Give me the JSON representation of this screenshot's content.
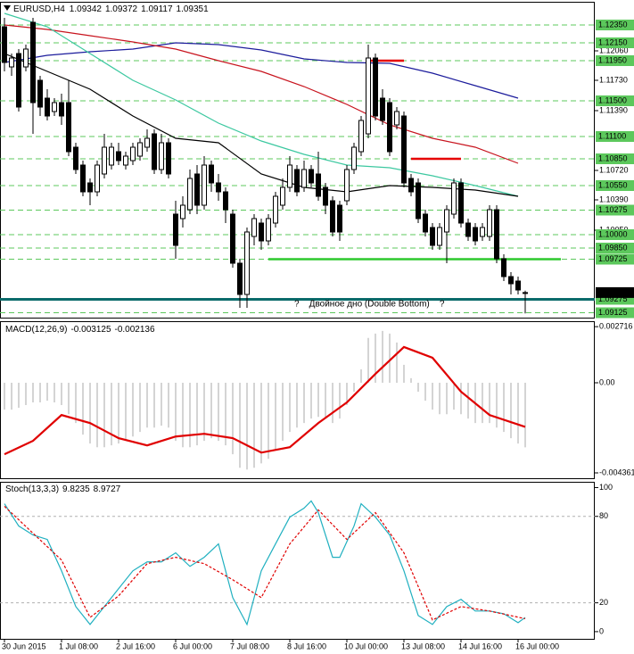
{
  "chart_data": [
    {
      "type": "candlestick",
      "title": "EURUSD,H4",
      "open": [
        1.1233,
        1.1188,
        1.1203,
        1.1188,
        1.1238,
        1.1173,
        1.1153,
        1.1138,
        1.1148,
        1.1148,
        1.1098,
        1.1078,
        1.1058,
        1.1048,
        1.1068,
        1.1078,
        1.1093,
        1.1078,
        1.1083,
        1.1088,
        1.1098,
        1.1113,
        1.1073,
        1.1103,
        1.1023,
        1.1018,
        1.1028,
        1.1068,
        1.1033,
        1.1078,
        1.1058,
        1.1048,
        1.1023,
        1.0968,
        1.0933,
        1.0998,
        1.1013,
        1.0993,
        1.1013,
        1.1033,
        1.1053,
        1.1073,
        1.1053,
        1.1073,
        1.1068,
        1.1053,
        1.1038,
        1.1033,
        1.1038,
        1.1073,
        1.1093,
        1.1113,
        1.1198,
        1.1153,
        1.1148,
        1.1123,
        1.1133,
        1.1063,
        1.1058,
        1.1023,
        1.1008,
        1.0988,
        1.1003,
        1.1023,
        1.1058,
        1.1013,
        1.1008,
        1.0998,
        1.0998,
        1.1028,
        1.0973,
        1.0953,
        1.0948,
        1.09342
      ],
      "high": [
        1.1243,
        1.1203,
        1.1208,
        1.1213,
        1.1243,
        1.1178,
        1.1163,
        1.1153,
        1.1158,
        1.1173,
        1.1103,
        1.1083,
        1.1063,
        1.1083,
        1.1113,
        1.1103,
        1.1103,
        1.1093,
        1.1103,
        1.1108,
        1.1118,
        1.1118,
        1.1113,
        1.1108,
        1.1038,
        1.1043,
        1.1073,
        1.1078,
        1.1088,
        1.1083,
        1.1068,
        1.1053,
        1.1028,
        1.0973,
        1.1008,
        1.1023,
        1.1018,
        1.1023,
        1.1048,
        1.1063,
        1.1088,
        1.1078,
        1.1083,
        1.1078,
        1.1093,
        1.1058,
        1.1043,
        1.1038,
        1.1078,
        1.1103,
        1.1133,
        1.1213,
        1.1203,
        1.1163,
        1.1153,
        1.1143,
        1.1138,
        1.1068,
        1.1063,
        1.1028,
        1.1013,
        1.1013,
        1.1033,
        1.1063,
        1.1063,
        1.1018,
        1.1013,
        1.1013,
        1.1033,
        1.1033,
        1.0978,
        1.0958,
        1.0953,
        1.09372
      ],
      "low": [
        1.1183,
        1.1178,
        1.1138,
        1.1183,
        1.1113,
        1.1133,
        1.1128,
        1.1133,
        1.1123,
        1.1088,
        1.1068,
        1.1043,
        1.1033,
        1.1043,
        1.1063,
        1.1073,
        1.1078,
        1.1073,
        1.1078,
        1.1083,
        1.1093,
        1.1068,
        1.1068,
        1.1063,
        1.0973,
        1.1008,
        1.1023,
        1.1023,
        1.1028,
        1.1048,
        1.1038,
        1.1013,
        1.0963,
        1.0918,
        1.0918,
        1.0988,
        1.0983,
        1.0988,
        1.1008,
        1.1028,
        1.1048,
        1.1043,
        1.1048,
        1.1053,
        1.1038,
        1.1023,
        1.0998,
        1.0993,
        1.1033,
        1.1068,
        1.1088,
        1.1108,
        1.1128,
        1.1123,
        1.1088,
        1.1118,
        1.1053,
        1.1043,
        1.1013,
        1.0998,
        1.0983,
        1.0983,
        1.0968,
        1.1018,
        1.1008,
        1.0993,
        1.0988,
        1.0993,
        1.0993,
        1.0968,
        1.0948,
        1.0933,
        1.0933,
        1.09117
      ],
      "close": [
        1.1193,
        1.1198,
        1.1143,
        1.1208,
        1.1148,
        1.1143,
        1.1133,
        1.1148,
        1.1133,
        1.1093,
        1.1073,
        1.1048,
        1.1048,
        1.1078,
        1.1098,
        1.1098,
        1.1083,
        1.1088,
        1.1098,
        1.1103,
        1.1108,
        1.1073,
        1.1103,
        1.1068,
        1.0988,
        1.1033,
        1.1063,
        1.1033,
        1.1078,
        1.1058,
        1.1048,
        1.1028,
        1.0968,
        1.0933,
        1.1003,
        1.1018,
        1.0993,
        1.1018,
        1.1043,
        1.1053,
        1.1078,
        1.1048,
        1.1073,
        1.1058,
        1.1043,
        1.1033,
        1.1003,
        1.1003,
        1.1073,
        1.1098,
        1.1128,
        1.1198,
        1.1133,
        1.1128,
        1.1093,
        1.1138,
        1.1058,
        1.1048,
        1.1018,
        1.1003,
        1.0988,
        1.1008,
        1.1028,
        1.1058,
        1.1013,
        1.0998,
        1.0993,
        1.1008,
        1.1028,
        1.0973,
        1.0953,
        1.0945,
        1.0938,
        1.09351
      ],
      "ylim": [
        1.0907,
        1.1261
      ],
      "yticks": [
        {
          "value": 1.1206,
          "label": "1.12060"
        },
        {
          "value": 1.1173,
          "label": "1.11730"
        },
        {
          "value": 1.1139,
          "label": "1.11390"
        },
        {
          "value": 1.1072,
          "label": "1.10720"
        },
        {
          "value": 1.1039,
          "label": "1.10390"
        },
        {
          "value": 1.1005,
          "label": "1.10050"
        }
      ],
      "levels": [
        {
          "value": 1.1235,
          "label": "1.12350"
        },
        {
          "value": 1.1215,
          "label": "1.12150"
        },
        {
          "value": 1.1195,
          "label": "1.11950"
        },
        {
          "value": 1.115,
          "label": "1.11500"
        },
        {
          "value": 1.111,
          "label": "1.11100"
        },
        {
          "value": 1.1085,
          "label": "1.10850"
        },
        {
          "value": 1.1055,
          "label": "1.10550"
        },
        {
          "value": 1.10275,
          "label": "1.10275"
        },
        {
          "value": 1.1,
          "label": "1.10000"
        },
        {
          "value": 1.0985,
          "label": "1.09850"
        },
        {
          "value": 1.09725,
          "label": "1.09725"
        },
        {
          "value": 1.09275,
          "label": "1.09275"
        },
        {
          "value": 1.09125,
          "label": "1.09125"
        }
      ],
      "level_color": "#5cc85c",
      "moving_averages": [
        {
          "color": "#1c1c9c",
          "x": [
            0,
            6,
            12,
            18,
            24,
            30,
            36,
            42,
            48,
            54,
            60,
            66,
            72
          ],
          "values": [
            1.1193,
            1.1201,
            1.1205,
            1.1208,
            1.1215,
            1.1213,
            1.1207,
            1.1197,
            1.1193,
            1.1192,
            1.1181,
            1.1167,
            1.1153
          ]
        },
        {
          "color": "#c8141e",
          "x": [
            0,
            6,
            12,
            18,
            24,
            30,
            36,
            42,
            48,
            54,
            60,
            66,
            72
          ],
          "values": [
            1.1235,
            1.123,
            1.1223,
            1.1216,
            1.1208,
            1.1195,
            1.1183,
            1.1166,
            1.1146,
            1.1123,
            1.1108,
            1.1098,
            1.108
          ]
        },
        {
          "color": "#3cc8a0",
          "x": [
            0,
            6,
            12,
            18,
            24,
            30,
            36,
            42,
            48,
            54,
            60,
            66,
            72
          ],
          "values": [
            1.1248,
            1.1233,
            1.1203,
            1.1173,
            1.1151,
            1.1125,
            1.1105,
            1.109,
            1.1078,
            1.1075,
            1.1066,
            1.1055,
            1.1043
          ]
        },
        {
          "color": "#000000",
          "x": [
            0,
            6,
            12,
            18,
            24,
            30,
            36,
            42,
            48,
            54,
            60,
            66,
            72
          ],
          "values": [
            1.1203,
            1.1183,
            1.1163,
            1.1133,
            1.1108,
            1.1103,
            1.1068,
            1.1053,
            1.1048,
            1.1055,
            1.1053,
            1.105,
            1.1043
          ]
        }
      ],
      "hline": {
        "value": 1.09275,
        "color": "#0b6b6b"
      },
      "segments": [
        {
          "color": "#e60000",
          "x": [
            51,
            56
          ],
          "value": 1.1195
        },
        {
          "color": "#e60000",
          "x": [
            57,
            64
          ],
          "value": 1.1085
        },
        {
          "color": "#2ec82e",
          "x": [
            37,
            78
          ],
          "value": 1.09725
        }
      ],
      "annotation": "?    Двойное дно (Double Bottom)    ?",
      "annotation_color": "#1e3cf0",
      "xticks": [
        {
          "value": 0,
          "label": "30 Jun 2015"
        },
        {
          "value": 8,
          "label": "1 Jul 08:00"
        },
        {
          "value": 16,
          "label": "2 Jul 16:00"
        },
        {
          "value": 24,
          "label": "6 Jul 00:00"
        },
        {
          "value": 32,
          "label": "7 Jul 08:00"
        },
        {
          "value": 40,
          "label": "8 Jul 16:00"
        },
        {
          "value": 48,
          "label": "10 Jul 00:00"
        },
        {
          "value": 56,
          "label": "13 Jul 08:00"
        },
        {
          "value": 64,
          "label": "14 Jul 16:00"
        },
        {
          "value": 72,
          "label": "16 Jul 00:00"
        }
      ]
    },
    {
      "type": "macd",
      "title": "MACD(12,26,9)",
      "histogram": [
        -0.0013,
        -0.0013,
        -0.00121,
        -0.00108,
        -0.00095,
        -0.00095,
        -0.00087,
        -0.00095,
        -0.00108,
        -0.00152,
        -0.00195,
        -0.00251,
        -0.00294,
        -0.00312,
        -0.00312,
        -0.00303,
        -0.00294,
        -0.00281,
        -0.0026,
        -0.00238,
        -0.00217,
        -0.00217,
        -0.00208,
        -0.00217,
        -0.00281,
        -0.00312,
        -0.00312,
        -0.00303,
        -0.00281,
        -0.00268,
        -0.00281,
        -0.00303,
        -0.00346,
        -0.00411,
        -0.0042,
        -0.00411,
        -0.0039,
        -0.00368,
        -0.00325,
        -0.00281,
        -0.00238,
        -0.00217,
        -0.00195,
        -0.00173,
        -0.00165,
        -0.00173,
        -0.00195,
        -0.00173,
        -0.00108,
        -0.00043,
        0.00065,
        0.00217,
        0.00238,
        0.00251,
        0.00238,
        0.00195,
        0.00087,
        0.00022,
        -0.00043,
        -0.00087,
        -0.0013,
        -0.00152,
        -0.00152,
        -0.0013,
        -0.00152,
        -0.00173,
        -0.00195,
        -0.00195,
        -0.00195,
        -0.00217,
        -0.00238,
        -0.00268,
        -0.00294,
        -0.003125
      ],
      "histogram_color": "#a8a8a8",
      "signal": {
        "color": "#e00000",
        "x": [
          0,
          4,
          8,
          12,
          16,
          20,
          24,
          28,
          32,
          36,
          40,
          44,
          48,
          52,
          56,
          60,
          64,
          68,
          73
        ],
        "values": [
          -0.00346,
          -0.00281,
          -0.00156,
          -0.00195,
          -0.00268,
          -0.00303,
          -0.0026,
          -0.00247,
          -0.00268,
          -0.00338,
          -0.00312,
          -0.00195,
          -0.00095,
          0.00043,
          0.00173,
          0.00121,
          -0.00043,
          -0.00156,
          -0.002136
        ]
      },
      "ylim": [
        -0.00462,
        0.00298
      ],
      "yticks": [
        0.002716,
        {
          "value": 0,
          "label": "0.00"
        },
        -0.004361
      ]
    },
    {
      "type": "stochastic",
      "title": "Stoch(13,3,3)",
      "series": [
        {
          "color": "#20b0c0",
          "dashed": false,
          "x": [
            0,
            2,
            4,
            6,
            8,
            10,
            12,
            14,
            16,
            18,
            20,
            22,
            24,
            26,
            28,
            30,
            32,
            34,
            36,
            38,
            40,
            42,
            43,
            44,
            46,
            47,
            49,
            50,
            52,
            54,
            56,
            58,
            60,
            62,
            64,
            66,
            68,
            70,
            72,
            73
          ],
          "values": [
            88.8,
            73.3,
            67.1,
            64,
            42.2,
            17.4,
            5,
            17.4,
            29.8,
            42.2,
            48.4,
            48.4,
            54.7,
            45.3,
            51.6,
            60.9,
            23.6,
            5,
            42.2,
            60.9,
            79.5,
            85.7,
            90.7,
            82.6,
            51.6,
            51.6,
            73.3,
            88.8,
            79.5,
            67.1,
            42.2,
            11.2,
            5,
            17.4,
            22.4,
            14.3,
            14.3,
            12.4,
            6.2,
            9.8235
          ]
        },
        {
          "color": "#e00000",
          "dashed": true,
          "x": [
            0,
            4,
            8,
            12,
            16,
            20,
            24,
            28,
            32,
            36,
            40,
            44,
            48,
            52,
            56,
            60,
            64,
            68,
            73
          ],
          "values": [
            87,
            68.3,
            49.7,
            9.9,
            24.8,
            47.2,
            51.6,
            47.2,
            36,
            23.6,
            60.9,
            84.5,
            64,
            82.6,
            54.7,
            8.1,
            17.4,
            14.3,
            8.9727
          ]
        }
      ],
      "ylim": [
        -5,
        104
      ],
      "yticks": [
        100,
        80,
        20,
        0
      ],
      "dashed_levels": [
        80,
        20
      ]
    }
  ]
}
